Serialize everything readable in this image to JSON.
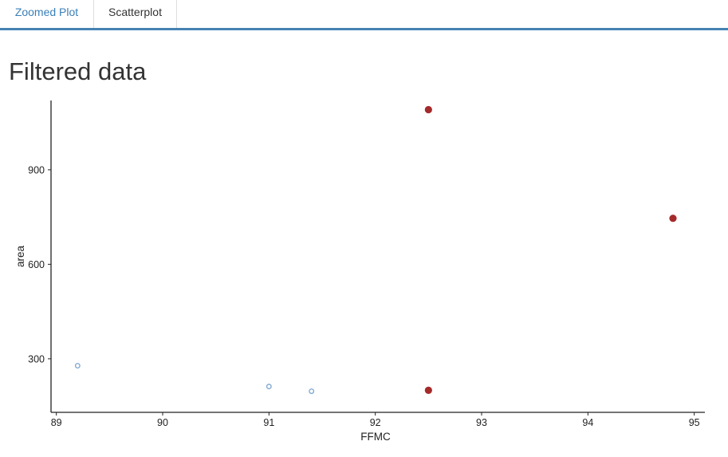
{
  "tabs": [
    {
      "label": "Zoomed Plot"
    },
    {
      "label": "Scatterplot"
    }
  ],
  "page": {
    "title": "Filtered data"
  },
  "colors": {
    "accent": "#4682b4",
    "highlight": "#a52a2a",
    "point_outline": "#7aa5d2"
  },
  "chart_data": {
    "type": "scatter",
    "xlabel": "FFMC",
    "ylabel": "area",
    "xlim": [
      88.95,
      95.1
    ],
    "ylim": [
      130,
      1120
    ],
    "xticks": [
      89,
      90,
      91,
      92,
      93,
      94,
      95
    ],
    "yticks": [
      300,
      600,
      900
    ],
    "grid": false,
    "series": [
      {
        "style": "open",
        "color": "#7aa5d2",
        "points": [
          {
            "x": 89.2,
            "y": 278
          },
          {
            "x": 91.0,
            "y": 212
          },
          {
            "x": 91.4,
            "y": 197
          }
        ]
      },
      {
        "style": "filled",
        "color": "#a52a2a",
        "points": [
          {
            "x": 92.5,
            "y": 1091
          },
          {
            "x": 94.8,
            "y": 746
          },
          {
            "x": 92.5,
            "y": 200
          }
        ]
      }
    ]
  }
}
